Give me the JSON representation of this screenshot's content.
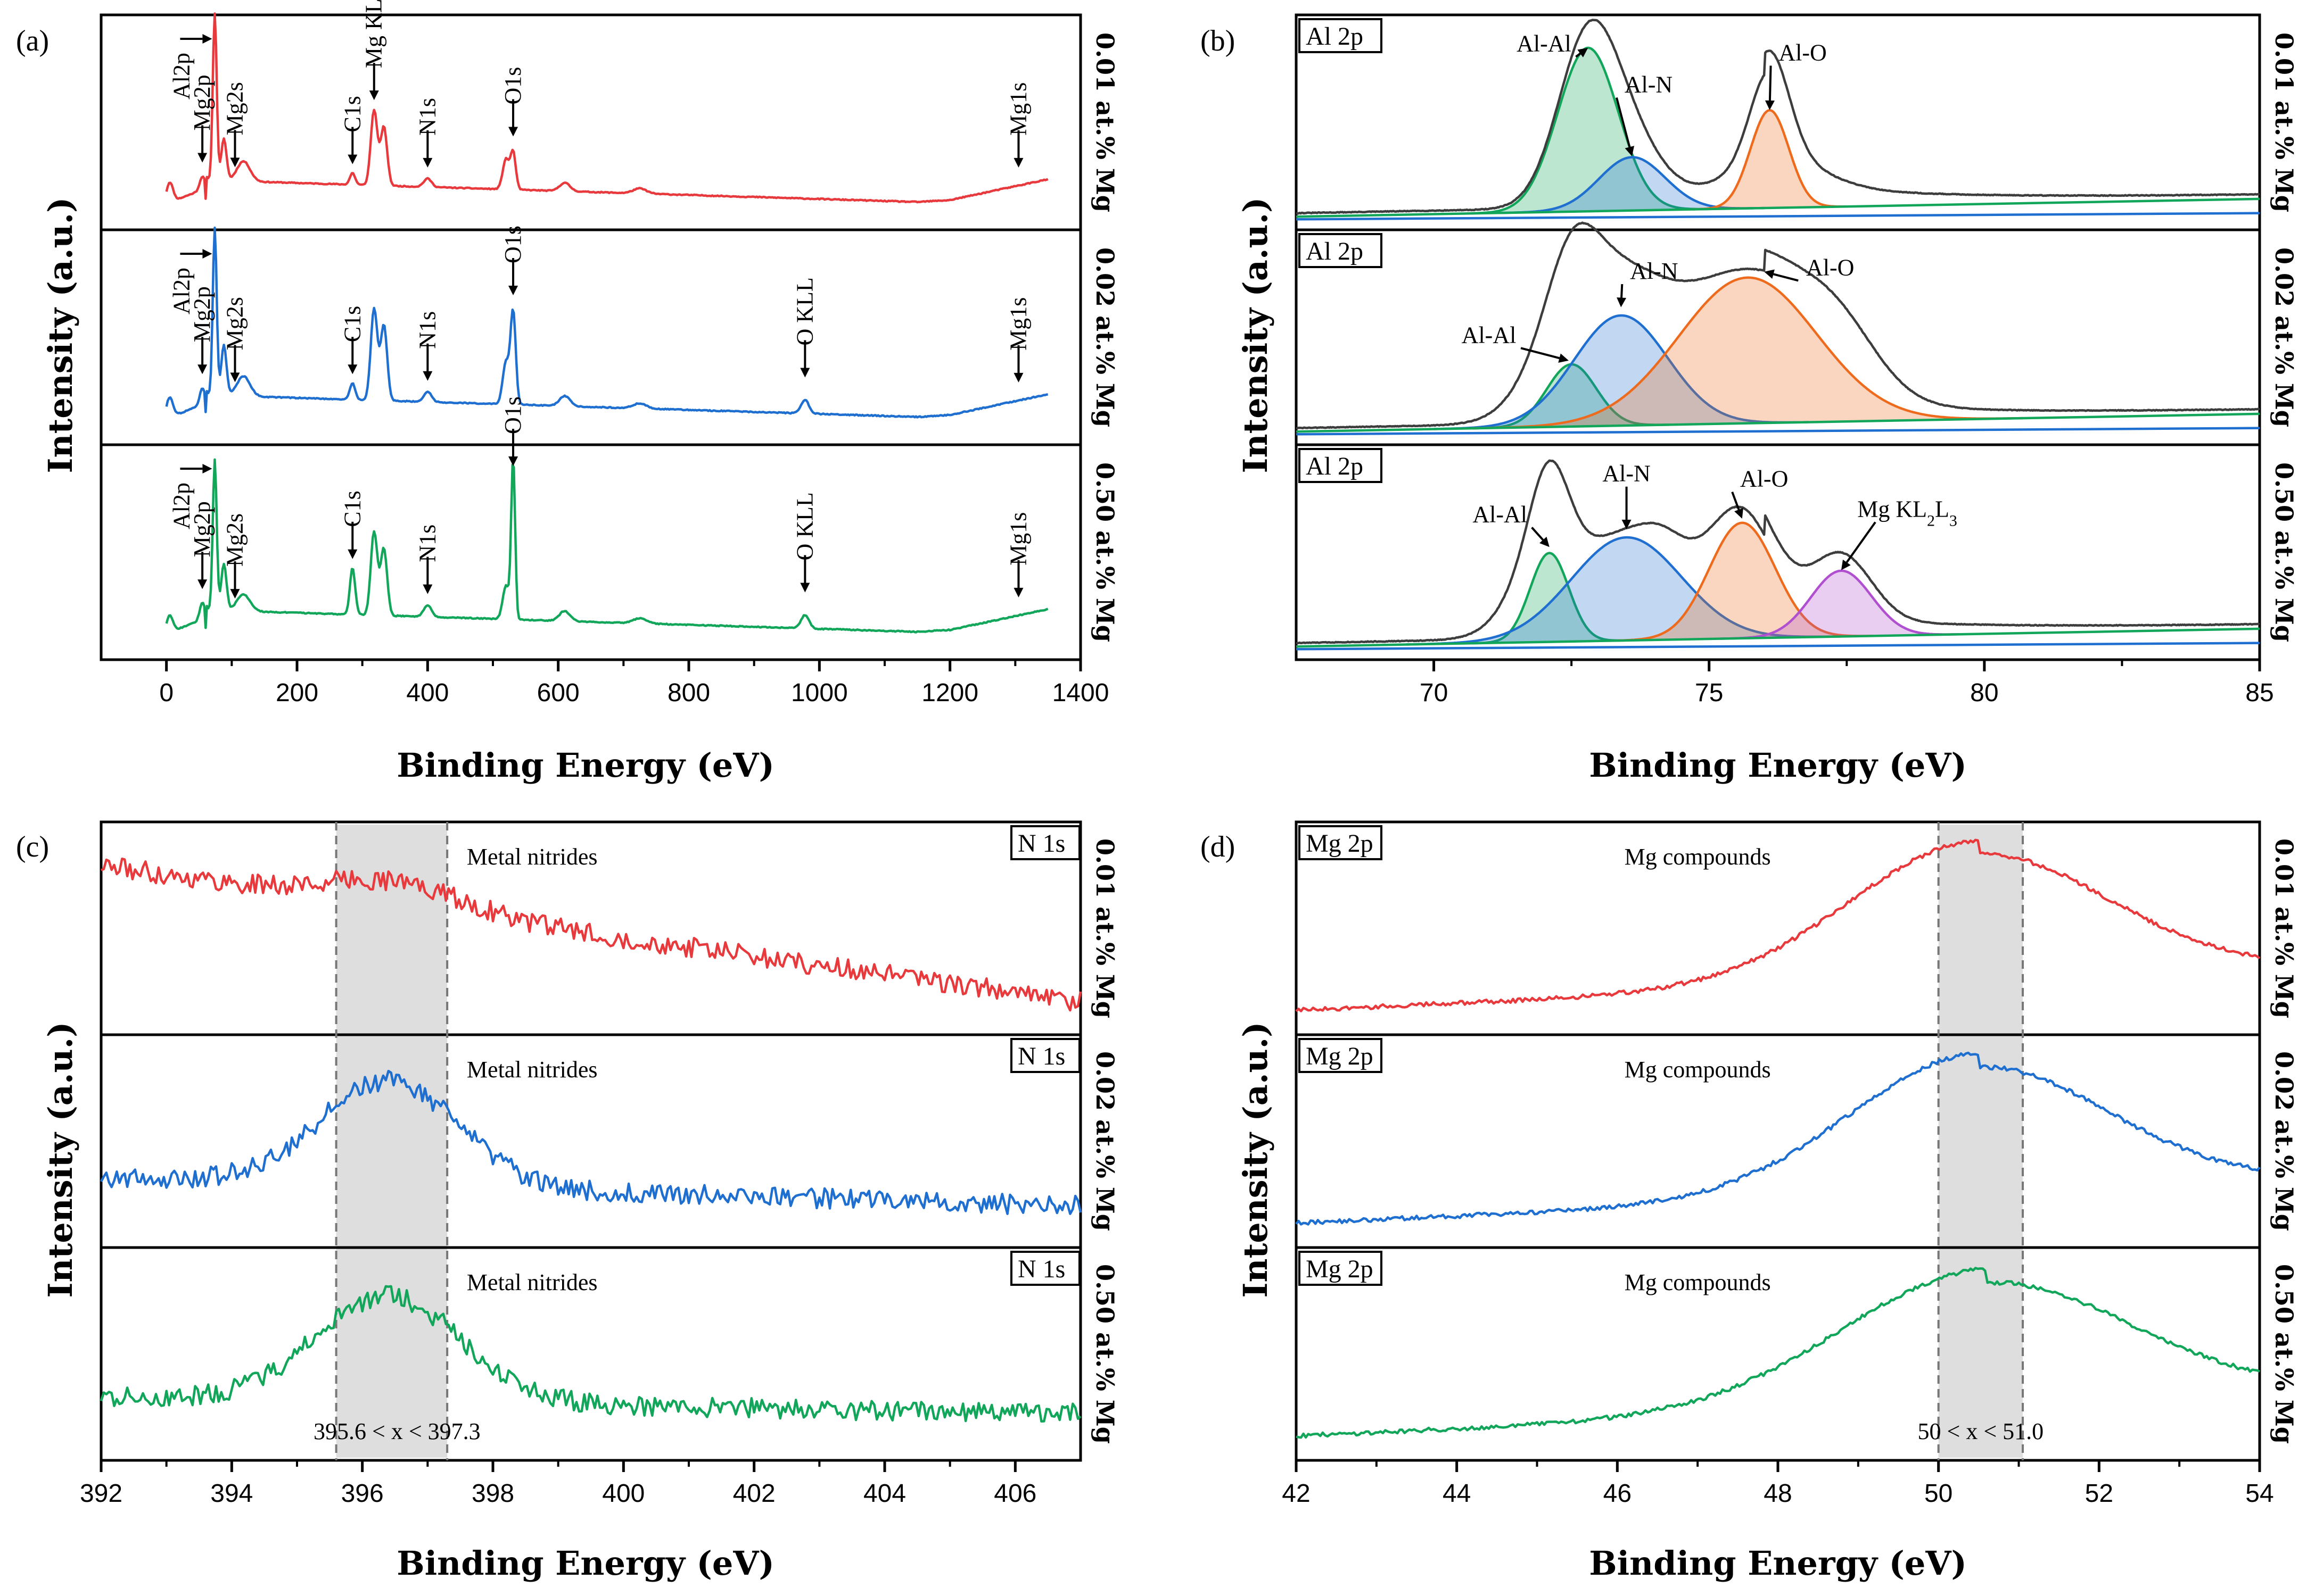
{
  "colors": {
    "red": "#e8393d",
    "blue": "#1f6fd1",
    "green": "#12a65a",
    "dark": "#3d3d3d",
    "orange": "#ee6a1d",
    "purple": "#b04fd0",
    "shade": "#dedede"
  },
  "y_axis_label": "Intensity (a.u.)",
  "x_axis_label": "Binding Energy (eV)",
  "chart_data": [
    {
      "panel": "(a)",
      "type": "line",
      "title": "",
      "xlabel": "Binding Energy (eV)",
      "ylabel": "Intensity (a.u.)",
      "xlim": [
        -100,
        1400
      ],
      "xticks": [
        0,
        200,
        400,
        600,
        800,
        1000,
        1200,
        1400
      ],
      "xtick_labels": [
        "0",
        "200",
        "400",
        "600",
        "800",
        "1000",
        "1200",
        "1400"
      ],
      "stacks": [
        {
          "label": "0.01 at.% Mg",
          "color": "#e8393d",
          "peaks": [
            [
              5,
              0.12,
              5
            ],
            [
              55,
              0.08,
              4
            ],
            [
              74,
              1.0,
              3
            ],
            [
              88,
              0.25,
              4
            ],
            [
              118,
              0.12,
              10
            ],
            [
              285,
              0.07,
              4
            ],
            [
              318,
              0.45,
              5
            ],
            [
              333,
              0.35,
              5
            ],
            [
              400,
              0.05,
              6
            ],
            [
              520,
              0.18,
              5
            ],
            [
              531,
              0.22,
              4
            ],
            [
              610,
              0.05,
              8
            ],
            [
              725,
              0.03,
              10
            ]
          ],
          "annotations": [
            {
              "text": "Mg2p",
              "x": 55
            },
            {
              "text": "Al2p",
              "x": 74
            },
            {
              "text": "Mg2s",
              "x": 105
            },
            {
              "text": "C1s",
              "x": 285
            },
            {
              "text": "Mg KLL",
              "x": 318
            },
            {
              "text": "N1s",
              "x": 400
            },
            {
              "text": "O1s",
              "x": 531
            },
            {
              "text": "Mg1s",
              "x": 1305
            }
          ]
        },
        {
          "label": "0.02 at.% Mg",
          "color": "#1f6fd1",
          "peaks": [
            [
              5,
              0.12,
              5
            ],
            [
              55,
              0.1,
              4
            ],
            [
              74,
              1.0,
              3
            ],
            [
              88,
              0.3,
              4
            ],
            [
              118,
              0.12,
              10
            ],
            [
              285,
              0.1,
              4
            ],
            [
              318,
              0.55,
              5
            ],
            [
              333,
              0.45,
              5
            ],
            [
              400,
              0.06,
              6
            ],
            [
              520,
              0.25,
              5
            ],
            [
              531,
              0.55,
              4
            ],
            [
              610,
              0.06,
              8
            ],
            [
              725,
              0.03,
              10
            ],
            [
              978,
              0.08,
              6
            ]
          ],
          "annotations": [
            {
              "text": "Mg2p",
              "x": 55
            },
            {
              "text": "Al2p",
              "x": 74
            },
            {
              "text": "Mg2s",
              "x": 105
            },
            {
              "text": "C1s",
              "x": 285
            },
            {
              "text": "N1s",
              "x": 400
            },
            {
              "text": "O1s",
              "x": 531
            },
            {
              "text": "O KLL",
              "x": 978
            },
            {
              "text": "Mg1s",
              "x": 1305
            }
          ]
        },
        {
          "label": "0.50 at.% Mg",
          "color": "#12a65a",
          "peaks": [
            [
              5,
              0.1,
              5
            ],
            [
              55,
              0.1,
              4
            ],
            [
              74,
              0.9,
              3
            ],
            [
              88,
              0.28,
              4
            ],
            [
              118,
              0.1,
              10
            ],
            [
              285,
              0.28,
              4
            ],
            [
              318,
              0.5,
              5
            ],
            [
              333,
              0.4,
              5
            ],
            [
              400,
              0.07,
              6
            ],
            [
              520,
              0.2,
              5
            ],
            [
              531,
              0.95,
              3
            ],
            [
              610,
              0.06,
              8
            ],
            [
              725,
              0.03,
              10
            ],
            [
              978,
              0.08,
              6
            ]
          ],
          "annotations": [
            {
              "text": "Mg2p",
              "x": 55
            },
            {
              "text": "Al2p",
              "x": 74
            },
            {
              "text": "Mg2s",
              "x": 105
            },
            {
              "text": "C1s",
              "x": 285
            },
            {
              "text": "N1s",
              "x": 400
            },
            {
              "text": "O1s",
              "x": 531
            },
            {
              "text": "O KLL",
              "x": 978
            },
            {
              "text": "Mg1s",
              "x": 1305
            }
          ]
        }
      ]
    },
    {
      "panel": "(b)",
      "type": "line",
      "title": "",
      "xlabel": "Binding Energy (eV)",
      "ylabel": "Intensity (a.u.)",
      "xlim": [
        67.5,
        85
      ],
      "xticks": [
        70,
        75,
        80,
        85
      ],
      "xtick_labels": [
        "70",
        "75",
        "80",
        "85"
      ],
      "stacks": [
        {
          "label": "0.01 at.% Mg",
          "box": "Al 2p",
          "components": [
            {
              "name": "Al-Al",
              "color": "#12a65a",
              "center": 72.8,
              "amp": 0.92,
              "sigma": 0.55
            },
            {
              "name": "Al-N",
              "color": "#1f6fd1",
              "center": 73.6,
              "amp": 0.3,
              "sigma": 0.6
            },
            {
              "name": "Al-O",
              "color": "#ee6a1d",
              "center": 76.1,
              "amp": 0.55,
              "sigma": 0.35
            }
          ],
          "envelope_extra": [
            [
              76.0,
              0.2,
              0.9
            ]
          ],
          "annotations": [
            {
              "text": "Al-Al",
              "x": 72.8
            },
            {
              "text": "Al-N",
              "x": 73.6
            },
            {
              "text": "Al-O",
              "x": 76.1
            }
          ]
        },
        {
          "label": "0.02 at.% Mg",
          "box": "Al 2p",
          "components": [
            {
              "name": "Al-Al",
              "color": "#12a65a",
              "center": 72.5,
              "amp": 0.35,
              "sigma": 0.45
            },
            {
              "name": "Al-N",
              "color": "#1f6fd1",
              "center": 73.4,
              "amp": 0.62,
              "sigma": 0.85
            },
            {
              "name": "Al-O",
              "color": "#ee6a1d",
              "center": 75.7,
              "amp": 0.82,
              "sigma": 1.25
            }
          ],
          "envelope_extra": [
            [
              72.4,
              0.35,
              0.7
            ],
            [
              77.4,
              0.25,
              0.7
            ]
          ],
          "annotations": [
            {
              "text": "Al-Al",
              "x": 72.5
            },
            {
              "text": "Al-N",
              "x": 73.4
            },
            {
              "text": "Al-O",
              "x": 75.7
            }
          ]
        },
        {
          "label": "0.50 at.% Mg",
          "box": "Al 2p",
          "components": [
            {
              "name": "Al-Al",
              "color": "#12a65a",
              "center": 72.1,
              "amp": 0.5,
              "sigma": 0.35
            },
            {
              "name": "Al-N",
              "color": "#1f6fd1",
              "center": 73.5,
              "amp": 0.58,
              "sigma": 1.0
            },
            {
              "name": "Al-O",
              "color": "#ee6a1d",
              "center": 75.6,
              "amp": 0.65,
              "sigma": 0.6
            },
            {
              "name": "Mg KL2L3",
              "color": "#b04fd0",
              "center": 77.4,
              "amp": 0.37,
              "sigma": 0.55
            }
          ],
          "envelope_extra": [
            [
              71.9,
              0.3,
              0.55
            ],
            [
              74.2,
              0.12,
              0.4
            ]
          ],
          "annotations": [
            {
              "text": "Al-Al",
              "x": 72.1
            },
            {
              "text": "Al-N",
              "x": 73.5
            },
            {
              "text": "Al-O",
              "x": 75.6
            },
            {
              "text": "Mg KL",
              "sub1": "2",
              "mid": "L",
              "sub2": "3",
              "x": 77.4
            }
          ]
        }
      ]
    },
    {
      "panel": "(c)",
      "type": "line",
      "title": "",
      "xlabel": "Binding Energy (eV)",
      "ylabel": "Intensity (a.u.)",
      "xlim": [
        392,
        407
      ],
      "xticks": [
        392,
        394,
        396,
        398,
        400,
        402,
        404,
        406
      ],
      "xtick_labels": [
        "392",
        "394",
        "396",
        "398",
        "400",
        "402",
        "404",
        "406"
      ],
      "shaded_region": [
        395.6,
        397.3
      ],
      "region_label": "395.6 < x < 397.3",
      "stacks": [
        {
          "label": "0.01 at.% Mg",
          "box": "N 1s",
          "color": "#e8393d",
          "annotation": "Metal nitrides",
          "peak": [
            396.5,
            0.15,
            1.0
          ],
          "base": [
            0.9,
            0.1
          ]
        },
        {
          "label": "0.02 at.% Mg",
          "box": "N 1s",
          "color": "#1f6fd1",
          "annotation": "Metal nitrides",
          "peak": [
            396.4,
            0.62,
            1.05
          ],
          "base": [
            0.32,
            0.15
          ]
        },
        {
          "label": "0.50 at.% Mg",
          "box": "N 1s",
          "color": "#12a65a",
          "annotation": "Metal nitrides",
          "peak": [
            396.4,
            0.62,
            1.1
          ],
          "base": [
            0.28,
            0.18
          ]
        }
      ]
    },
    {
      "panel": "(d)",
      "type": "line",
      "title": "",
      "xlabel": "Binding Energy (eV)",
      "ylabel": "Intensity (a.u.)",
      "xlim": [
        42,
        54
      ],
      "xticks": [
        42,
        44,
        46,
        48,
        50,
        52,
        54
      ],
      "xtick_labels": [
        "42",
        "44",
        "46",
        "48",
        "50",
        "52",
        "54"
      ],
      "shaded_region": [
        50.0,
        51.05
      ],
      "region_label": "50 < x < 51.0",
      "stacks": [
        {
          "label": "0.01 at.% Mg",
          "box": "Mg 2p",
          "color": "#e8393d",
          "annotation": "Mg compounds",
          "peak": [
            50.5,
            0.82,
            1.6
          ],
          "base": [
            0.05,
            0.02
          ]
        },
        {
          "label": "0.02 at.% Mg",
          "box": "Mg 2p",
          "color": "#1f6fd1",
          "annotation": "Mg compounds",
          "peak": [
            50.5,
            0.82,
            1.6
          ],
          "base": [
            0.05,
            0.02
          ]
        },
        {
          "label": "0.50 at.% Mg",
          "box": "Mg 2p",
          "color": "#12a65a",
          "annotation": "Mg compounds",
          "peak": [
            50.6,
            0.8,
            1.8
          ],
          "base": [
            0.05,
            0.02
          ]
        }
      ]
    }
  ]
}
